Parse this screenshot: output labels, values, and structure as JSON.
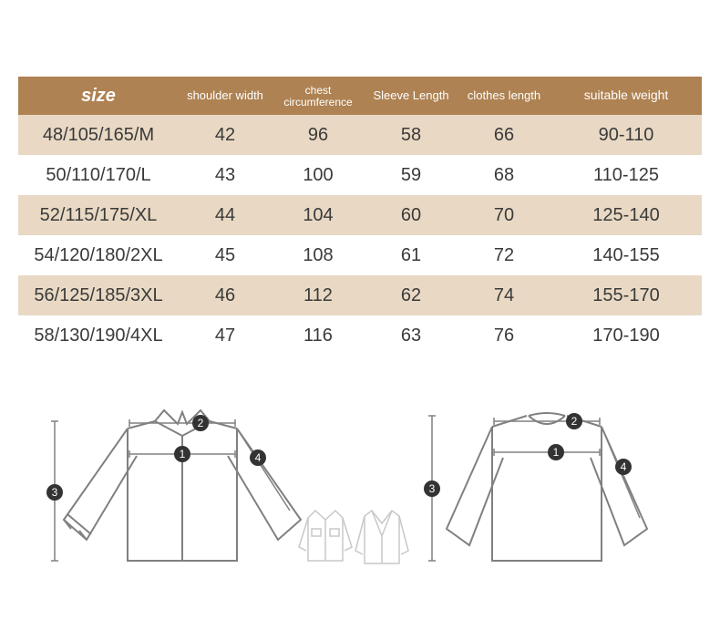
{
  "table": {
    "header_bg": "#ae8252",
    "header_fg": "#ffffff",
    "row_even_bg": "#e9d9c4",
    "row_odd_bg": "#ffffff",
    "text_color": "#3a3a3a",
    "columns": {
      "size": "size",
      "shoulder": "shoulder width",
      "chest": "chest circumference",
      "sleeve": "Sleeve Length",
      "clothes": "clothes length",
      "weight": "suitable weight"
    },
    "rows": [
      {
        "size": "48/105/165/M",
        "shoulder": "42",
        "chest": "96",
        "sleeve": "58",
        "clothes": "66",
        "weight": "90-110"
      },
      {
        "size": "50/110/170/L",
        "shoulder": "43",
        "chest": "100",
        "sleeve": "59",
        "clothes": "68",
        "weight": "110-125"
      },
      {
        "size": "52/115/175/XL",
        "shoulder": "44",
        "chest": "104",
        "sleeve": "60",
        "clothes": "70",
        "weight": "125-140"
      },
      {
        "size": "54/120/180/2XL",
        "shoulder": "45",
        "chest": "108",
        "sleeve": "61",
        "clothes": "72",
        "weight": "140-155"
      },
      {
        "size": "56/125/185/3XL",
        "shoulder": "46",
        "chest": "112",
        "sleeve": "62",
        "clothes": "74",
        "weight": "155-170"
      },
      {
        "size": "58/130/190/4XL",
        "shoulder": "47",
        "chest": "116",
        "sleeve": "63",
        "clothes": "76",
        "weight": "170-190"
      }
    ]
  },
  "diagram": {
    "stroke": "#808080",
    "marker_bg": "#333333",
    "marker_fg": "#ffffff",
    "labels": {
      "l1": "1",
      "l2": "2",
      "l3": "3",
      "l4": "4"
    }
  }
}
